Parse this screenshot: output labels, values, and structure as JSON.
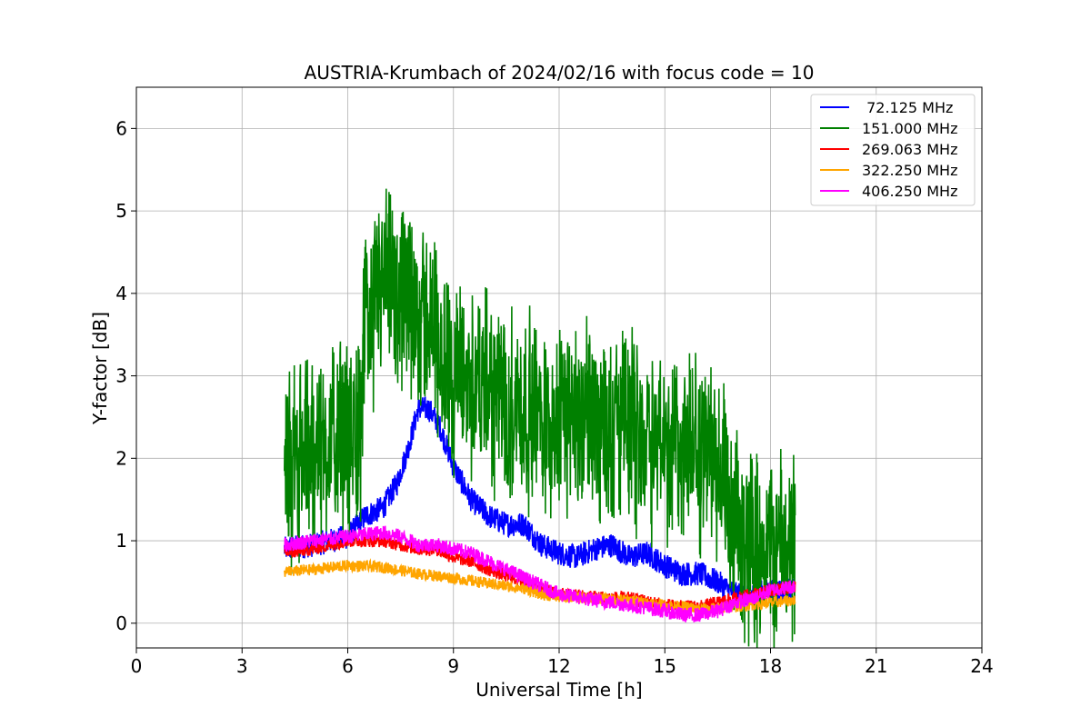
{
  "chart_data": {
    "type": "line",
    "title": "AUSTRIA-Krumbach of 2024/02/16 with focus code = 10",
    "xlabel": "Universal Time [h]",
    "ylabel": "Y-factor [dB]",
    "xlim": [
      0,
      24
    ],
    "ylim": [
      -0.3,
      6.5
    ],
    "x_ticks": [
      "0",
      "3",
      "6",
      "9",
      "12",
      "15",
      "18",
      "21",
      "24"
    ],
    "y_ticks": [
      "0",
      "1",
      "2",
      "3",
      "4",
      "5",
      "6"
    ],
    "grid": true,
    "legend_position": "top-right",
    "series": [
      {
        "name": " 72.125 MHz",
        "color": "#0000ff",
        "noise": 0.15,
        "x": [
          4.2,
          5.0,
          6.0,
          6.5,
          7.0,
          7.4,
          7.7,
          8.0,
          8.3,
          8.6,
          9.0,
          9.5,
          10.0,
          10.5,
          11.0,
          11.5,
          12.0,
          12.5,
          13.0,
          13.5,
          14.0,
          14.5,
          15.0,
          15.5,
          16.0,
          16.5,
          17.0,
          17.5,
          18.0,
          18.7
        ],
        "y": [
          0.9,
          0.95,
          1.05,
          1.3,
          1.4,
          1.7,
          2.1,
          2.6,
          2.6,
          2.4,
          1.9,
          1.5,
          1.3,
          1.2,
          1.2,
          0.95,
          0.85,
          0.8,
          0.9,
          0.95,
          0.8,
          0.85,
          0.7,
          0.6,
          0.6,
          0.5,
          0.35,
          0.35,
          0.4,
          0.4
        ]
      },
      {
        "name": "151.000 MHz",
        "color": "#008000",
        "noise": 1.4,
        "x": [
          4.2,
          5.0,
          6.0,
          6.4,
          6.5,
          7.0,
          7.5,
          8.0,
          8.5,
          9.0,
          9.5,
          10.0,
          11.0,
          12.0,
          13.0,
          14.0,
          15.0,
          16.0,
          16.6,
          16.8,
          17.5,
          18.0,
          18.7
        ],
        "y": [
          2.0,
          2.2,
          2.4,
          2.6,
          3.8,
          4.2,
          4.0,
          3.9,
          3.6,
          3.1,
          3.0,
          2.9,
          2.7,
          2.6,
          2.6,
          2.5,
          2.3,
          2.2,
          2.1,
          1.2,
          1.1,
          1.0,
          1.0
        ]
      },
      {
        "name": "269.063 MHz",
        "color": "#ff0000",
        "noise": 0.08,
        "x": [
          4.2,
          5.0,
          6.0,
          7.0,
          7.5,
          8.0,
          8.5,
          9.0,
          9.5,
          10.0,
          11.0,
          12.0,
          13.0,
          14.0,
          15.0,
          15.5,
          16.0,
          17.0,
          18.0,
          18.7
        ],
        "y": [
          0.85,
          0.9,
          1.0,
          1.0,
          0.95,
          0.9,
          0.9,
          0.8,
          0.75,
          0.65,
          0.5,
          0.35,
          0.32,
          0.3,
          0.22,
          0.2,
          0.2,
          0.3,
          0.4,
          0.45
        ]
      },
      {
        "name": "322.250 MHz",
        "color": "#ffa500",
        "noise": 0.07,
        "x": [
          4.2,
          5.0,
          6.0,
          7.0,
          8.0,
          9.0,
          10.0,
          11.0,
          11.5,
          12.0,
          13.0,
          14.0,
          15.0,
          15.5,
          16.0,
          16.5,
          17.0,
          18.0,
          18.7
        ],
        "y": [
          0.62,
          0.65,
          0.7,
          0.68,
          0.6,
          0.55,
          0.48,
          0.42,
          0.35,
          0.32,
          0.3,
          0.28,
          0.22,
          0.2,
          0.17,
          0.18,
          0.2,
          0.25,
          0.28
        ]
      },
      {
        "name": "406.250 MHz",
        "color": "#ff00ff",
        "noise": 0.09,
        "x": [
          4.2,
          5.0,
          6.0,
          7.0,
          7.5,
          8.0,
          8.5,
          9.0,
          9.5,
          10.0,
          10.5,
          11.0,
          11.5,
          12.0,
          13.0,
          14.0,
          15.0,
          15.5,
          16.0,
          16.5,
          17.0,
          17.5,
          18.0,
          18.7
        ],
        "y": [
          0.95,
          1.0,
          1.05,
          1.1,
          1.05,
          0.95,
          0.95,
          0.9,
          0.85,
          0.75,
          0.65,
          0.55,
          0.45,
          0.35,
          0.28,
          0.22,
          0.15,
          0.1,
          0.1,
          0.15,
          0.25,
          0.3,
          0.4,
          0.45
        ]
      }
    ]
  }
}
